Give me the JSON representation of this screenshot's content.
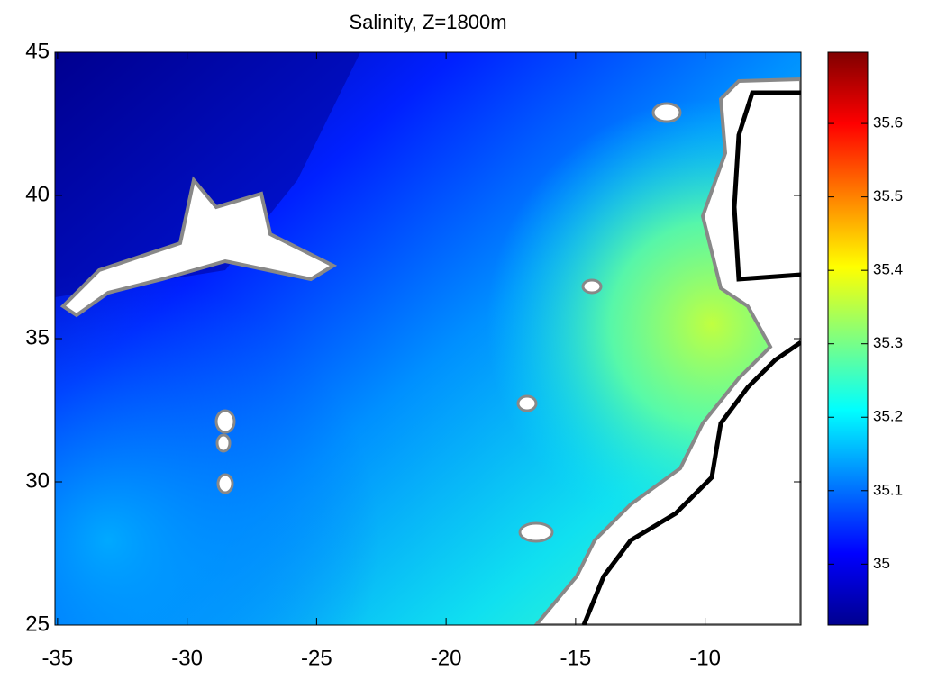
{
  "chart_data": {
    "type": "map",
    "title": "Salinity, Z=1800m",
    "xlim": [
      -35.1,
      -6.3
    ],
    "xticks": [
      -35,
      -30,
      -25,
      -20,
      -15,
      -10
    ],
    "ylim": [
      25,
      45
    ],
    "yticks": [
      25,
      30,
      35,
      40,
      45
    ],
    "colorbar": {
      "colormap": "jet",
      "clim": [
        34.917,
        35.697
      ],
      "ticks": [
        35,
        35.1,
        35.2,
        35.3,
        35.4,
        35.5,
        35.6
      ]
    }
  }
}
